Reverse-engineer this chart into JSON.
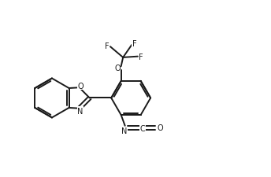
{
  "bg_color": "#ffffff",
  "line_color": "#1a1a1a",
  "line_width": 1.4,
  "figsize": [
    3.44,
    2.26
  ],
  "dpi": 100,
  "xlim": [
    -1.0,
    9.5
  ],
  "ylim": [
    -1.5,
    7.5
  ]
}
